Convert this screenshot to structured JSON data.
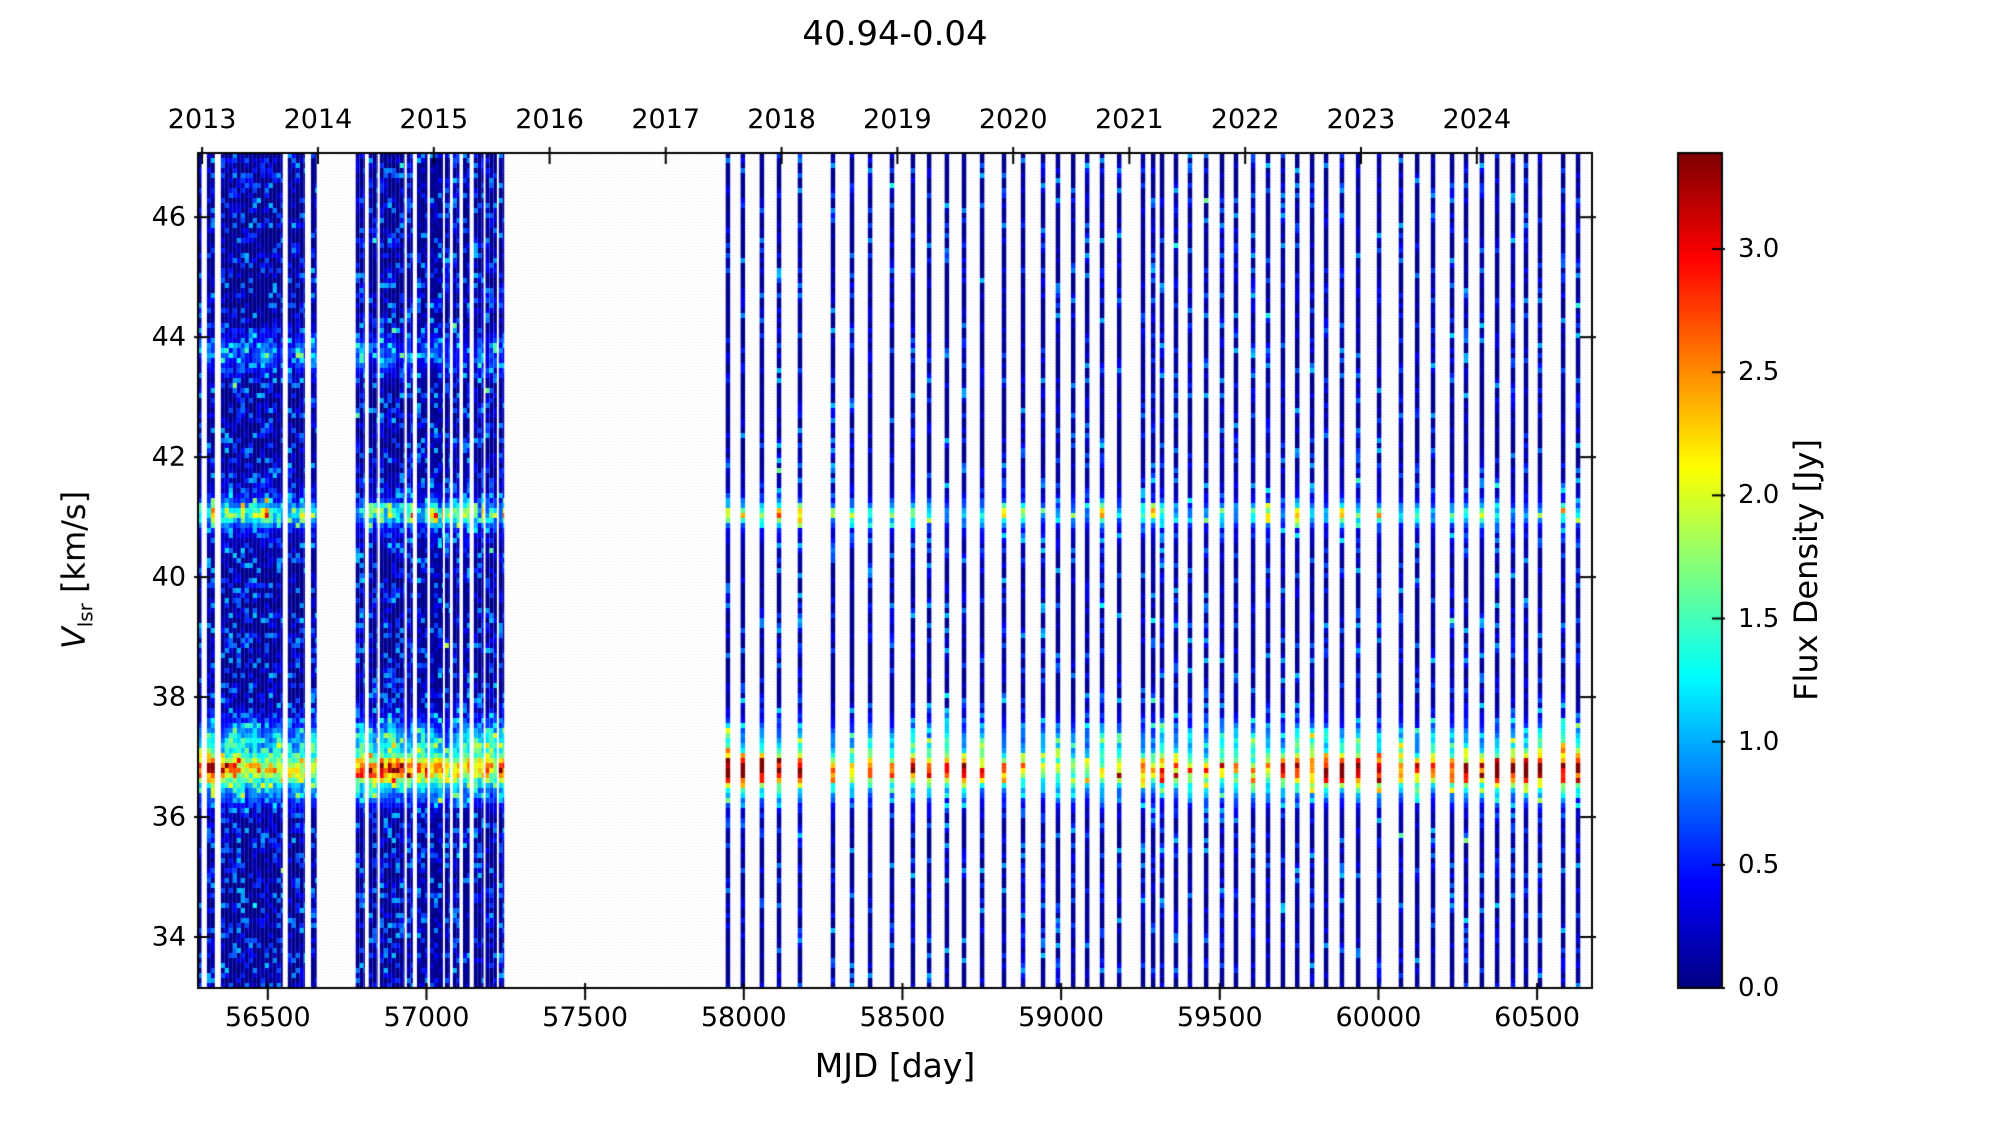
{
  "chart_data": {
    "type": "heatmap",
    "title": "40.94-0.04",
    "xlabel": "MJD [day]",
    "ylabel": {
      "symbol": "V",
      "subscript": "lsr",
      "unit": " [km/s]"
    },
    "top_axis": {
      "unit": "year",
      "ticks": [
        {
          "label": "2013",
          "mjd": 56293
        },
        {
          "label": "2014",
          "mjd": 56658
        },
        {
          "label": "2015",
          "mjd": 57023
        },
        {
          "label": "2016",
          "mjd": 57388
        },
        {
          "label": "2017",
          "mjd": 57754
        },
        {
          "label": "2018",
          "mjd": 58119
        },
        {
          "label": "2019",
          "mjd": 58484
        },
        {
          "label": "2020",
          "mjd": 58849
        },
        {
          "label": "2021",
          "mjd": 59215
        },
        {
          "label": "2022",
          "mjd": 59580
        },
        {
          "label": "2023",
          "mjd": 59945
        },
        {
          "label": "2024",
          "mjd": 60310
        }
      ]
    },
    "x_axis": {
      "range": [
        56280,
        60673
      ],
      "ticks": [
        {
          "value": 56500,
          "label": "56500"
        },
        {
          "value": 57000,
          "label": "57000"
        },
        {
          "value": 57500,
          "label": "57500"
        },
        {
          "value": 58000,
          "label": "58000"
        },
        {
          "value": 58500,
          "label": "58500"
        },
        {
          "value": 59000,
          "label": "59000"
        },
        {
          "value": 59500,
          "label": "59500"
        },
        {
          "value": 60000,
          "label": "60000"
        },
        {
          "value": 60500,
          "label": "60500"
        }
      ]
    },
    "y_axis": {
      "range": [
        33.15,
        47.07
      ],
      "ticks": [
        {
          "value": 46,
          "label": "46"
        },
        {
          "value": 44,
          "label": "44"
        },
        {
          "value": 42,
          "label": "42"
        },
        {
          "value": 40,
          "label": "40"
        },
        {
          "value": 38,
          "label": "38"
        },
        {
          "value": 36,
          "label": "36"
        },
        {
          "value": 34,
          "label": "34"
        }
      ]
    },
    "colorbar": {
      "label": "Flux Density [Jy]",
      "colormap": "jet",
      "range": [
        0.0,
        3.39
      ],
      "ticks": [
        {
          "value": 3.0,
          "label": "3.0"
        },
        {
          "value": 2.5,
          "label": "2.5"
        },
        {
          "value": 2.0,
          "label": "2.0"
        },
        {
          "value": 1.5,
          "label": "1.5"
        },
        {
          "value": 1.0,
          "label": "1.0"
        },
        {
          "value": 0.5,
          "label": "0.5"
        },
        {
          "value": 0.0,
          "label": "0.0"
        }
      ]
    },
    "spectral_features": [
      {
        "name": "main-line",
        "v_center": 36.78,
        "sigma_kms": 0.17,
        "flux_min": 1.6,
        "flux_max": 3.39
      },
      {
        "name": "red-shoulder",
        "v_center": 37.28,
        "sigma_kms": 0.22,
        "flux_min": 0.45,
        "flux_max": 1.15
      },
      {
        "name": "blue-shoulder",
        "v_center": 36.38,
        "sigma_kms": 0.14,
        "flux_min": 0.25,
        "flux_max": 0.75
      },
      {
        "name": "line-41",
        "v_center": 41.05,
        "sigma_kms": 0.13,
        "flux_min": 0.65,
        "flux_max": 1.8
      },
      {
        "name": "line-43.7",
        "v_center": 43.72,
        "sigma_kms": 0.22,
        "flux_min": 0.2,
        "flux_max": 0.85,
        "mjd_max": 57300
      }
    ],
    "epochs": {
      "dense_segments_mjd": [
        [
          56281,
          56291
        ],
        [
          56308,
          56333
        ],
        [
          56352,
          56547
        ],
        [
          56563,
          56617
        ],
        [
          56636,
          56654
        ],
        [
          56777,
          56806
        ],
        [
          56818,
          56846
        ],
        [
          56853,
          56931
        ],
        [
          56938,
          56957
        ],
        [
          56970,
          57003
        ],
        [
          57011,
          57052
        ],
        [
          57058,
          57074
        ],
        [
          57083,
          57104
        ],
        [
          57115,
          57136
        ],
        [
          57149,
          57180
        ],
        [
          57186,
          57222
        ],
        [
          57228,
          57245
        ]
      ],
      "sparse_mjd": [
        57950,
        57997,
        58057,
        58111,
        58177,
        58281,
        58341,
        58398,
        58467,
        58533,
        58584,
        58640,
        58694,
        58751,
        58820,
        58880,
        58943,
        58990,
        59038,
        59082,
        59129,
        59183,
        59258,
        59290,
        59318,
        59362,
        59406,
        59457,
        59507,
        59551,
        59605,
        59652,
        59699,
        59744,
        59791,
        59835,
        59885,
        59936,
        60002,
        60071,
        60122,
        60172,
        60232,
        60276,
        60326,
        60374,
        60424,
        60465,
        60509,
        60582,
        60629
      ]
    }
  }
}
